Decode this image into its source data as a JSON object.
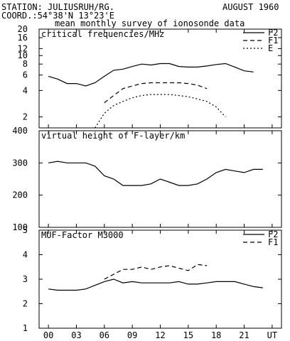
{
  "header": {
    "station": "STATION: JULIUSRUH/RG.",
    "date": "AUGUST 1960",
    "coord": "COORD.:54°38'N 13°23'E",
    "subtitle": "mean monthly survey of ionosonde data"
  },
  "chart_data": [
    {
      "type": "line",
      "title": "critical frequencies/MHz",
      "y_scale": "log",
      "ylim": [
        1.5,
        20
      ],
      "xlim": [
        -1,
        25
      ],
      "y_ticks": [
        2,
        4,
        6,
        8,
        10,
        12,
        16,
        20
      ],
      "x": [
        0,
        1,
        2,
        3,
        4,
        5,
        6,
        7,
        8,
        9,
        10,
        11,
        12,
        13,
        14,
        15,
        16,
        17,
        18,
        19,
        20,
        21,
        22,
        23
      ],
      "series": [
        {
          "name": "F2",
          "style": "solid",
          "values": [
            5.8,
            5.4,
            4.8,
            4.8,
            4.5,
            4.9,
            5.8,
            6.8,
            7.0,
            7.5,
            8.0,
            7.8,
            8.1,
            8.1,
            7.5,
            7.4,
            7.4,
            7.6,
            7.9,
            8.1,
            7.4,
            6.7,
            6.5,
            null
          ]
        },
        {
          "name": "F1",
          "style": "dashed",
          "values": [
            null,
            null,
            null,
            null,
            null,
            null,
            2.9,
            3.5,
            4.2,
            4.5,
            4.8,
            4.9,
            4.9,
            4.9,
            4.9,
            4.8,
            4.6,
            4.2,
            null,
            null,
            null,
            null,
            null,
            null
          ]
        },
        {
          "name": "E",
          "style": "dotted",
          "values": [
            null,
            null,
            null,
            null,
            null,
            1.5,
            2.2,
            2.7,
            3.0,
            3.3,
            3.5,
            3.6,
            3.6,
            3.6,
            3.5,
            3.4,
            3.2,
            3.0,
            2.6,
            2.0,
            null,
            null,
            null,
            null
          ]
        }
      ]
    },
    {
      "type": "line",
      "title": "virtual height of F-layer/km",
      "ylim": [
        100,
        400
      ],
      "xlim": [
        -1,
        25
      ],
      "y_ticks": [
        100,
        200,
        300,
        400
      ],
      "x": [
        0,
        1,
        2,
        3,
        4,
        5,
        6,
        7,
        8,
        9,
        10,
        11,
        12,
        13,
        14,
        15,
        16,
        17,
        18,
        19,
        20,
        21,
        22,
        23
      ],
      "series": [
        {
          "style": "solid",
          "values": [
            300,
            305,
            300,
            300,
            300,
            290,
            260,
            250,
            230,
            230,
            230,
            235,
            250,
            240,
            230,
            230,
            235,
            250,
            270,
            280,
            275,
            270,
            280,
            280
          ]
        }
      ]
    },
    {
      "type": "line",
      "title": "MUF-Factor M3000",
      "ylim": [
        1,
        5
      ],
      "xlim": [
        -1,
        25
      ],
      "y_ticks": [
        1,
        2,
        3,
        4,
        5
      ],
      "x": [
        0,
        1,
        2,
        3,
        4,
        5,
        6,
        7,
        8,
        9,
        10,
        11,
        12,
        13,
        14,
        15,
        16,
        17,
        18,
        19,
        20,
        21,
        22,
        23
      ],
      "series": [
        {
          "name": "F2",
          "style": "solid",
          "values": [
            2.6,
            2.55,
            2.55,
            2.55,
            2.6,
            2.75,
            2.9,
            3.0,
            2.85,
            2.9,
            2.85,
            2.85,
            2.85,
            2.85,
            2.9,
            2.8,
            2.8,
            2.85,
            2.9,
            2.9,
            2.9,
            2.8,
            2.7,
            2.65
          ]
        },
        {
          "name": "F1",
          "style": "dashed",
          "values": [
            null,
            null,
            null,
            null,
            null,
            null,
            3.0,
            3.2,
            3.4,
            3.4,
            3.5,
            3.4,
            3.5,
            3.55,
            3.45,
            3.35,
            3.6,
            3.55,
            null,
            null,
            null,
            null,
            null,
            null
          ]
        }
      ]
    }
  ],
  "x_tick_labels": [
    "00",
    "03",
    "06",
    "09",
    "12",
    "15",
    "18",
    "21",
    "UT"
  ],
  "x_tick_positions": [
    0,
    3,
    6,
    9,
    12,
    15,
    18,
    21,
    24
  ]
}
